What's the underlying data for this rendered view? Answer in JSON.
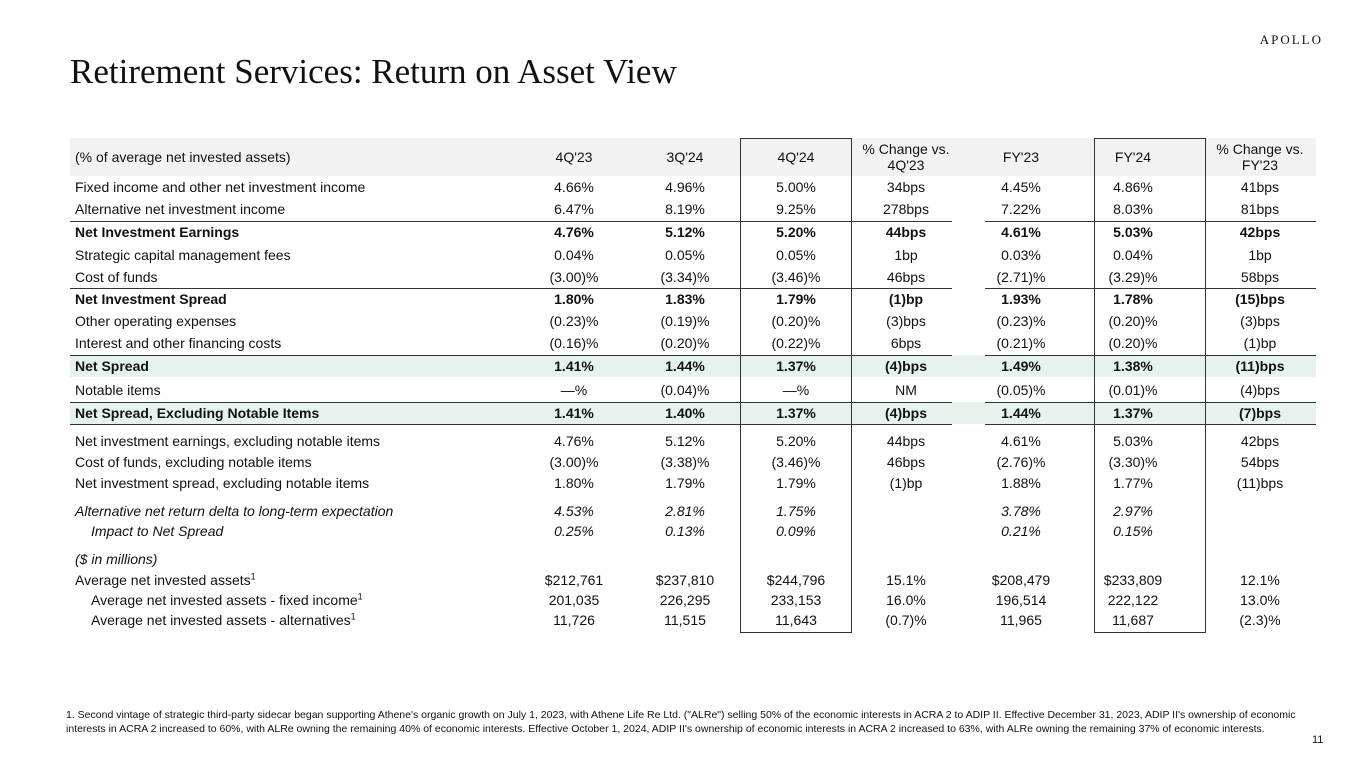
{
  "logo": "APOLLO",
  "title": "Retirement Services: Return on Asset View",
  "table": {
    "header": [
      "(% of average net invested assets)",
      "4Q'23",
      "3Q'24",
      "4Q'24",
      "% Change vs. 4Q'23",
      "FY'23",
      "FY'24",
      "% Change vs. FY'23"
    ],
    "units_note": "($ in millions)",
    "rows": [
      {
        "label": "Fixed income and other net investment income",
        "values": [
          "4.66%",
          "4.96%",
          "5.00%",
          "34bps",
          "4.45%",
          "4.86%",
          "41bps"
        ]
      },
      {
        "label": "Alternative net investment income",
        "values": [
          "6.47%",
          "8.19%",
          "9.25%",
          "278bps",
          "7.22%",
          "8.03%",
          "81bps"
        ]
      },
      {
        "label": "Net Investment Earnings",
        "values": [
          "4.76%",
          "5.12%",
          "5.20%",
          "44bps",
          "4.61%",
          "5.03%",
          "42bps"
        ]
      },
      {
        "label": "Strategic capital management fees",
        "values": [
          "0.04%",
          "0.05%",
          "0.05%",
          "1bp",
          "0.03%",
          "0.04%",
          "1bp"
        ]
      },
      {
        "label": "Cost of funds",
        "values": [
          "(3.00)%",
          "(3.34)%",
          "(3.46)%",
          "46bps",
          "(2.71)%",
          "(3.29)%",
          "58bps"
        ]
      },
      {
        "label": "Net Investment Spread",
        "values": [
          "1.80%",
          "1.83%",
          "1.79%",
          "(1)bp",
          "1.93%",
          "1.78%",
          "(15)bps"
        ]
      },
      {
        "label": "Other operating expenses",
        "values": [
          "(0.23)%",
          "(0.19)%",
          "(0.20)%",
          "(3)bps",
          "(0.23)%",
          "(0.20)%",
          "(3)bps"
        ]
      },
      {
        "label": "Interest and other financing costs",
        "values": [
          "(0.16)%",
          "(0.20)%",
          "(0.22)%",
          "6bps",
          "(0.21)%",
          "(0.20)%",
          "(1)bp"
        ]
      },
      {
        "label": "Net Spread",
        "values": [
          "1.41%",
          "1.44%",
          "1.37%",
          "(4)bps",
          "1.49%",
          "1.38%",
          "(11)bps"
        ]
      },
      {
        "label": "Notable items",
        "values": [
          "—%",
          "(0.04)%",
          "—%",
          "NM",
          "(0.05)%",
          "(0.01)%",
          "(4)bps"
        ]
      },
      {
        "label": "Net Spread, Excluding Notable Items",
        "values": [
          "1.41%",
          "1.40%",
          "1.37%",
          "(4)bps",
          "1.44%",
          "1.37%",
          "(7)bps"
        ]
      },
      {
        "label": "Net investment earnings, excluding notable items",
        "values": [
          "4.76%",
          "5.12%",
          "5.20%",
          "44bps",
          "4.61%",
          "5.03%",
          "42bps"
        ]
      },
      {
        "label": "Cost of funds, excluding notable items",
        "values": [
          "(3.00)%",
          "(3.38)%",
          "(3.46)%",
          "46bps",
          "(2.76)%",
          "(3.30)%",
          "54bps"
        ]
      },
      {
        "label": "Net investment spread, excluding notable items",
        "values": [
          "1.80%",
          "1.79%",
          "1.79%",
          "(1)bp",
          "1.88%",
          "1.77%",
          "(11)bps"
        ]
      },
      {
        "label": "Alternative net return delta to long-term expectation",
        "values": [
          "4.53%",
          "2.81%",
          "1.75%",
          null,
          "3.78%",
          "2.97%",
          null
        ]
      },
      {
        "label": "Impact to Net Spread",
        "values": [
          "0.25%",
          "0.13%",
          "0.09%",
          null,
          "0.21%",
          "0.15%",
          null
        ]
      },
      {
        "label": "Average net invested assets",
        "note": "1",
        "values": [
          "$212,761",
          "$237,810",
          "$244,796",
          "15.1%",
          "$208,479",
          "$233,809",
          "12.1%"
        ]
      },
      {
        "label": "Average net invested assets - fixed income",
        "note": "1",
        "values": [
          "201,035",
          "226,295",
          "233,153",
          "16.0%",
          "196,514",
          "222,122",
          "13.0%"
        ]
      },
      {
        "label": "Average net invested assets - alternatives",
        "note": "1",
        "values": [
          "11,726",
          "11,515",
          "11,643",
          "(0.7)%",
          "11,965",
          "11,687",
          "(2.3)%"
        ]
      }
    ]
  },
  "footnote": "1. Second vintage of strategic third-party sidecar began supporting Athene's organic growth on July 1, 2023, with Athene Life Re Ltd. (\"ALRe\") selling 50% of the economic interests in ACRA 2 to ADIP II. Effective December 31, 2023, ADIP II's ownership of economic interests in ACRA 2 increased to 60%, with ALRe owning the remaining 40% of economic interests. Effective October 1, 2024, ADIP II's ownership of economic interests in ACRA 2 increased to 63%, with ALRe owning the remaining 37% of economic interests.",
  "page_number": "11"
}
